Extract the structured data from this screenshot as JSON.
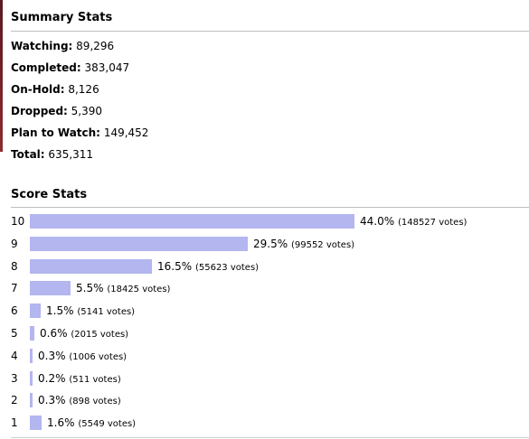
{
  "summary": {
    "title": "Summary Stats",
    "items": [
      {
        "label": "Watching:",
        "value": "89,296"
      },
      {
        "label": "Completed:",
        "value": "383,047"
      },
      {
        "label": "On-Hold:",
        "value": "8,126"
      },
      {
        "label": "Dropped:",
        "value": "5,390"
      },
      {
        "label": "Plan to Watch:",
        "value": "149,452"
      },
      {
        "label": "Total:",
        "value": "635,311"
      }
    ]
  },
  "scores": {
    "title": "Score Stats",
    "rows": [
      {
        "score": "10",
        "percent": "44.0%",
        "votes": "(148527 votes)",
        "fraction": 0.44
      },
      {
        "score": "9",
        "percent": "29.5%",
        "votes": "(99552 votes)",
        "fraction": 0.295
      },
      {
        "score": "8",
        "percent": "16.5%",
        "votes": "(55623 votes)",
        "fraction": 0.165
      },
      {
        "score": "7",
        "percent": "5.5%",
        "votes": "(18425 votes)",
        "fraction": 0.055
      },
      {
        "score": "6",
        "percent": "1.5%",
        "votes": "(5141 votes)",
        "fraction": 0.015
      },
      {
        "score": "5",
        "percent": "0.6%",
        "votes": "(2015 votes)",
        "fraction": 0.006
      },
      {
        "score": "4",
        "percent": "0.3%",
        "votes": "(1006 votes)",
        "fraction": 0.003
      },
      {
        "score": "3",
        "percent": "0.2%",
        "votes": "(511 votes)",
        "fraction": 0.002
      },
      {
        "score": "2",
        "percent": "0.3%",
        "votes": "(898 votes)",
        "fraction": 0.003
      },
      {
        "score": "1",
        "percent": "1.6%",
        "votes": "(5549 votes)",
        "fraction": 0.016
      }
    ]
  },
  "colors": {
    "bar": "#b3b6ef",
    "rule": "#bebebe"
  }
}
